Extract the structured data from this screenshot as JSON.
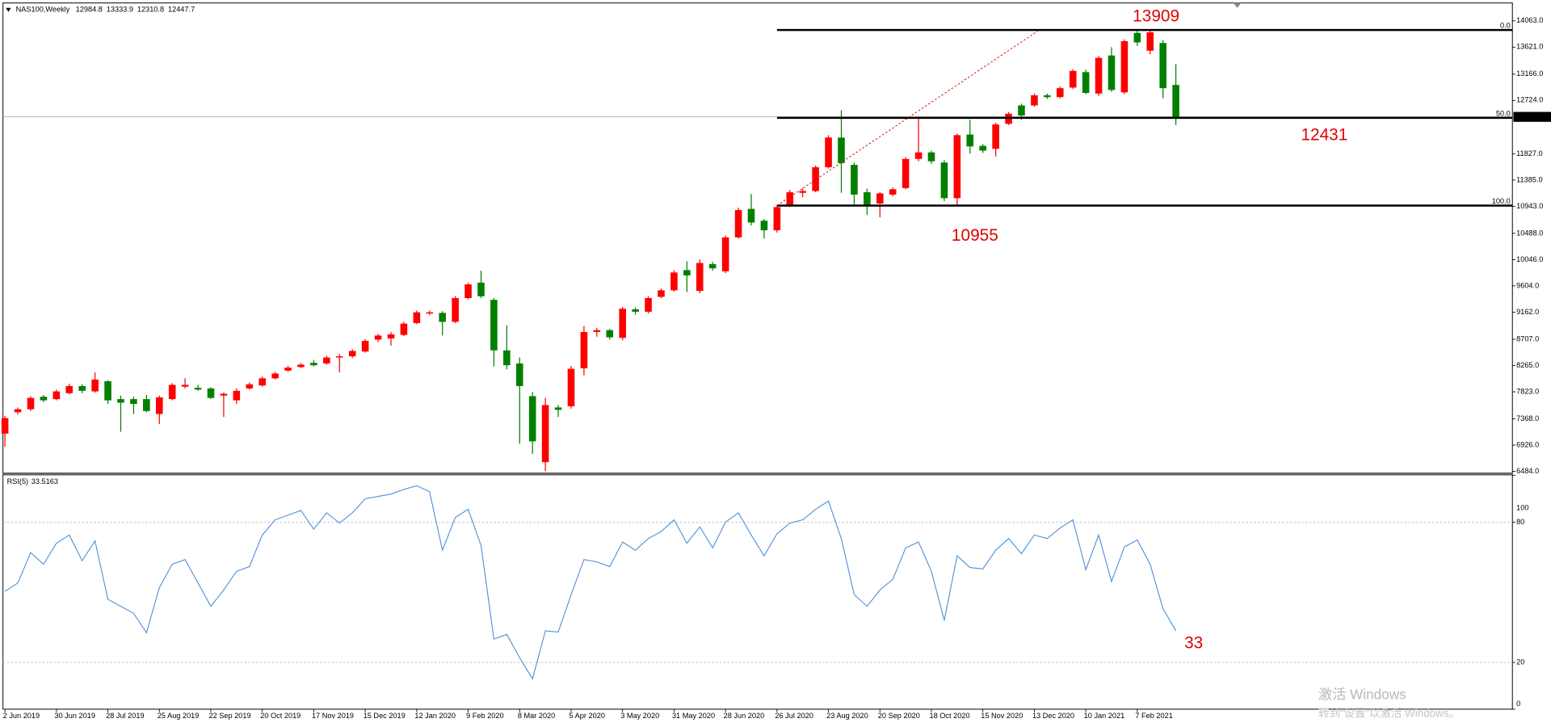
{
  "chart_data": [
    {
      "type": "candlestick",
      "title": "NAS100,Weekly",
      "up_color": "#ff0000",
      "down_color": "#008000",
      "categories": [
        "2 Jun 2019",
        null,
        null,
        null,
        "30 Jun 2019",
        null,
        null,
        null,
        "28 Jul 2019",
        null,
        null,
        null,
        "25 Aug 2019",
        null,
        null,
        null,
        "22 Sep 2019",
        null,
        null,
        null,
        "20 Oct 2019",
        null,
        null,
        null,
        "17 Nov 2019",
        null,
        null,
        null,
        "15 Dec 2019",
        null,
        null,
        null,
        "12 Jan 2020",
        null,
        null,
        null,
        "9 Feb 2020",
        null,
        null,
        null,
        "8 Mar 2020",
        null,
        null,
        null,
        "5 Apr 2020",
        null,
        null,
        null,
        "3 May 2020",
        null,
        null,
        null,
        "31 May 2020",
        null,
        null,
        null,
        "28 Jun 2020",
        null,
        null,
        null,
        "26 Jul 2020",
        null,
        null,
        null,
        "23 Aug 2020",
        null,
        null,
        null,
        "20 Sep 2020",
        null,
        null,
        null,
        "18 Oct 2020",
        null,
        null,
        null,
        "15 Nov 2020",
        null,
        null,
        null,
        "13 Dec 2020",
        null,
        null,
        null,
        "10 Jan 2021",
        null,
        null,
        null,
        "7 Feb 2021",
        null,
        null,
        null
      ],
      "open": [
        7120,
        7480,
        7530,
        7740,
        7700,
        7800,
        7920,
        7830,
        8000,
        7700,
        7700,
        7700,
        7450,
        7700,
        7910,
        7890,
        7880,
        7760,
        7680,
        7880,
        7930,
        8050,
        8180,
        8240,
        8310,
        8300,
        8400,
        8420,
        8500,
        8700,
        8720,
        8780,
        8980,
        9140,
        9150,
        9000,
        9400,
        9660,
        9370,
        8520,
        8300,
        7750,
        6640,
        7560,
        7580,
        8220,
        8830,
        8860,
        8730,
        9210,
        9170,
        9420,
        9530,
        9870,
        9520,
        9970,
        9850,
        10420,
        10900,
        10700,
        10540,
        10950,
        11170,
        11200,
        11600,
        12100,
        11640,
        11180,
        10990,
        11140,
        11250,
        11740,
        11850,
        11680,
        11080,
        12150,
        11960,
        11910,
        12330,
        12640,
        12640,
        12810,
        12780,
        12940,
        13200,
        12840,
        13480,
        12860,
        13860,
        13560,
        13690,
        12984.8
      ],
      "high": [
        7420,
        7560,
        7750,
        7770,
        7860,
        7960,
        7950,
        8150,
        8020,
        7760,
        7740,
        7770,
        7760,
        7970,
        8050,
        7940,
        7900,
        7810,
        7880,
        7980,
        8080,
        8160,
        8260,
        8310,
        8360,
        8430,
        8460,
        8540,
        8710,
        8800,
        8830,
        9000,
        9190,
        9190,
        9180,
        9430,
        9660,
        9860,
        9400,
        8940,
        8400,
        7820,
        7720,
        7600,
        8260,
        8930,
        8900,
        8880,
        9250,
        9240,
        9430,
        9560,
        9870,
        10020,
        10050,
        10010,
        10450,
        10920,
        11150,
        10730,
        10960,
        11220,
        11250,
        11630,
        12140,
        12560,
        11680,
        11240,
        11180,
        11260,
        11770,
        12450,
        11880,
        11720,
        12170,
        12400,
        11990,
        12350,
        12530,
        12670,
        12840,
        12840,
        12960,
        13250,
        13240,
        13470,
        13620,
        13750,
        13900,
        13909,
        13740,
        13333.9
      ],
      "low": [
        6900,
        7440,
        7500,
        7650,
        7680,
        7780,
        7800,
        7810,
        7620,
        7150,
        7450,
        7480,
        7280,
        7680,
        7880,
        7840,
        7700,
        7400,
        7620,
        7860,
        7910,
        8030,
        8160,
        8220,
        8250,
        8280,
        8150,
        8390,
        8480,
        8660,
        8600,
        8760,
        8960,
        9110,
        8770,
        8980,
        9380,
        9400,
        8250,
        8200,
        6950,
        6780,
        6490,
        7400,
        7540,
        8100,
        8750,
        8700,
        8690,
        9120,
        9140,
        9400,
        9510,
        9500,
        9480,
        9860,
        9820,
        10400,
        10620,
        10400,
        10500,
        10930,
        11100,
        11180,
        11580,
        11170,
        10950,
        10800,
        10760,
        11110,
        11230,
        11700,
        11660,
        11030,
        10955,
        11830,
        11840,
        11780,
        12310,
        12400,
        12620,
        12750,
        12760,
        12920,
        12830,
        12800,
        12870,
        12830,
        13640,
        13500,
        12760,
        12310.8
      ],
      "close": [
        7380,
        7530,
        7720,
        7680,
        7830,
        7920,
        7840,
        8030,
        7680,
        7640,
        7620,
        7500,
        7730,
        7940,
        7940,
        7860,
        7720,
        7790,
        7840,
        7950,
        8050,
        8130,
        8230,
        8280,
        8270,
        8400,
        8420,
        8510,
        8680,
        8770,
        8790,
        8970,
        9160,
        9160,
        9000,
        9400,
        9630,
        9430,
        8520,
        8270,
        7920,
        6990,
        7600,
        7520,
        8210,
        8830,
        8860,
        8740,
        9220,
        9170,
        9400,
        9530,
        9830,
        9780,
        9990,
        9900,
        10420,
        10880,
        10670,
        10540,
        10930,
        11180,
        11200,
        11600,
        12100,
        11670,
        11140,
        10960,
        11160,
        11230,
        11740,
        11850,
        11700,
        11080,
        12140,
        11950,
        11880,
        12320,
        12500,
        12470,
        12810,
        12780,
        12930,
        13220,
        12850,
        13440,
        12900,
        13720,
        13700,
        13870,
        12930,
        12447.7
      ],
      "ylim": [
        6450,
        14330
      ],
      "yticks": [
        {
          "value": 14063,
          "label": "14063.0"
        },
        {
          "value": 13621,
          "label": "13621.0"
        },
        {
          "value": 13166,
          "label": "13166.0"
        },
        {
          "value": 12724,
          "label": "12724.0"
        },
        {
          "value": 11827,
          "label": "11827.0"
        },
        {
          "value": 11385,
          "label": "11385.0"
        },
        {
          "value": 10943,
          "label": "10943.0"
        },
        {
          "value": 10488,
          "label": "10488.0"
        },
        {
          "value": 10046,
          "label": "10046.0"
        },
        {
          "value": 9604,
          "label": "9604.0"
        },
        {
          "value": 9162,
          "label": "9162.0"
        },
        {
          "value": 8707,
          "label": "8707.0"
        },
        {
          "value": 8265,
          "label": "8265.0"
        },
        {
          "value": 7823,
          "label": "7823.0"
        },
        {
          "value": 7368,
          "label": "7368.0"
        },
        {
          "value": 6926,
          "label": "6926.0"
        },
        {
          "value": 6484,
          "label": "6484.0"
        }
      ],
      "fib": [
        {
          "price": 13909,
          "label": "0.0"
        },
        {
          "price": 12431,
          "label": "50.0"
        },
        {
          "price": 10955,
          "label": "100.0"
        }
      ],
      "watermark": [
        "激活 Windows",
        "转到“设置”以激活 Windows。"
      ]
    },
    {
      "type": "line",
      "title": "RSI(5)",
      "color": "#4a90d9",
      "annotation": "33",
      "values": [
        50.4,
        54,
        67,
        62,
        71,
        74.5,
        63.5,
        72,
        47,
        44,
        41,
        32.7,
        52,
        62,
        64,
        54,
        44,
        51,
        59,
        61,
        74.5,
        81,
        83,
        85,
        77,
        84,
        79.6,
        84,
        90,
        91,
        92,
        94,
        95.6,
        93,
        68,
        82,
        85.5,
        70,
        30,
        32,
        22,
        13,
        33.5,
        33,
        49,
        64,
        63,
        61,
        71.5,
        68,
        73,
        76,
        81,
        71,
        78,
        69,
        80,
        84,
        74.5,
        65.6,
        75,
        79.6,
        81,
        85.5,
        89,
        73,
        49,
        44,
        51,
        55.5,
        69,
        71.5,
        59,
        38,
        65.6,
        60.6,
        60,
        68,
        73,
        66.5,
        74.5,
        73,
        77.5,
        81,
        59.7,
        74.5,
        54.6,
        69.4,
        72.4,
        62,
        43,
        33.5163
      ],
      "ylim": [
        0,
        100
      ],
      "yticks": [
        100,
        80,
        20,
        0
      ]
    }
  ]
}
